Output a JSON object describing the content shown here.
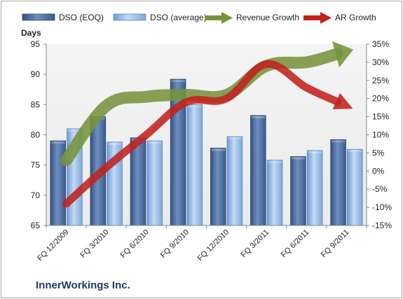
{
  "chart_data": {
    "type": "bar",
    "categories": [
      "FQ 12/2009",
      "FQ 3/2010",
      "FQ 6/2010",
      "FQ 9/2010",
      "FQ 12/2010",
      "FQ 3/2011",
      "FQ 6/2011",
      "FQ 9/2011"
    ],
    "series": [
      {
        "name": "DSO (EOQ)",
        "type": "bar",
        "axis": "left",
        "values": [
          79.0,
          83.0,
          79.5,
          89.2,
          77.8,
          83.2,
          76.4,
          79.2
        ]
      },
      {
        "name": "DSO (average)",
        "type": "bar",
        "axis": "left",
        "values": [
          81.0,
          78.8,
          79.0,
          85.0,
          79.7,
          75.8,
          77.4,
          77.6
        ]
      },
      {
        "name": "Revenue Growth",
        "type": "line-arrow",
        "axis": "right",
        "values": [
          3,
          18,
          20.5,
          21,
          21,
          29,
          30,
          33
        ]
      },
      {
        "name": "AR Growth",
        "type": "line-arrow",
        "axis": "right",
        "values": [
          -9,
          1,
          10,
          19,
          20,
          29.5,
          23,
          18
        ]
      }
    ],
    "ylabel": "Days",
    "ylim": [
      65,
      95
    ],
    "yticks": [
      65,
      70,
      75,
      80,
      85,
      90,
      95
    ],
    "y2lim": [
      -15,
      35
    ],
    "y2ticks": [
      "-15%",
      "-10%",
      "-5%",
      "0%",
      "5%",
      "10%",
      "15%",
      "20%",
      "25%",
      "30%",
      "35%"
    ],
    "legend_position": "top",
    "grid": false,
    "colors": {
      "dso_eoq": "#4a6b9f",
      "dso_avg": "#8db3e2",
      "revenue_growth": "#77933c",
      "ar_growth": "#c0221e",
      "plot_bg": "#ebebeb"
    }
  },
  "footer": {
    "company": "InnerWorkings Inc."
  }
}
